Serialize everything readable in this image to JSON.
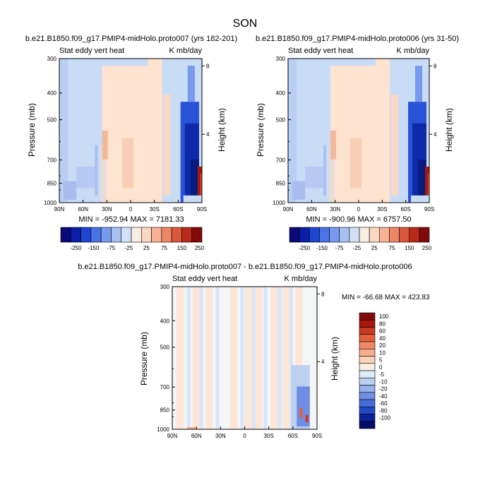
{
  "page": {
    "season": "SON"
  },
  "panels": [
    {
      "title": "b.e21.B1850.f09_g17.PMIP4-midHolo.proto007 (yrs 182-201)",
      "left_label": "Stat eddy vert heat",
      "right_label": "K mb/day",
      "ylabel": "Pressure (mb)",
      "y2label": "Height (km)",
      "stats": "MIN = -952.94   MAX = 7181.33"
    },
    {
      "title": "b.e21.B1850.f09_g17.PMIP4-midHolo.proto006 (yrs 31-50)",
      "left_label": "Stat eddy vert heat",
      "right_label": "K mb/day",
      "ylabel": "Pressure (mb)",
      "y2label": "Height (km)",
      "stats": "MIN = -900.96   MAX = 6757.50"
    },
    {
      "title": "b.e21.B1850.f09_g17.PMIP4-midHolo.proto007 - b.e21.B1850.f09_g17.PMIP4-midHolo.proto006",
      "left_label": "Stat eddy vert heat",
      "right_label": "K mb/day",
      "ylabel": "Pressure (mb)",
      "y2label": "Height (km)",
      "stats": "MIN = -66.68   MAX = 423.83"
    }
  ],
  "chart_data": [
    {
      "type": "heatmap",
      "title": "b.e21.B1850.f09_g17.PMIP4-midHolo.proto007 (yrs 182-201)",
      "xlabel": "",
      "ylabel": "Pressure (mb)",
      "y2label": "Height (km)",
      "x_ticks": [
        "90N",
        "60N",
        "30N",
        "0",
        "30S",
        "60S",
        "90S"
      ],
      "y_ticks": [
        300,
        400,
        500,
        700,
        850,
        1000
      ],
      "y2_ticks": [
        8,
        4
      ],
      "ylim": [
        1000,
        300
      ],
      "y_scale": "log",
      "min": -952.94,
      "max": 7181.33,
      "colorbar_levels": [
        -250,
        -150,
        -75,
        -25,
        25,
        75,
        150,
        250
      ]
    },
    {
      "type": "heatmap",
      "title": "b.e21.B1850.f09_g17.PMIP4-midHolo.proto006 (yrs 31-50)",
      "xlabel": "",
      "ylabel": "Pressure (mb)",
      "y2label": "Height (km)",
      "x_ticks": [
        "90N",
        "60N",
        "30N",
        "0",
        "30S",
        "60S",
        "90S"
      ],
      "y_ticks": [
        300,
        400,
        500,
        700,
        850,
        1000
      ],
      "y2_ticks": [
        8,
        4
      ],
      "ylim": [
        1000,
        300
      ],
      "y_scale": "log",
      "min": -900.96,
      "max": 6757.5,
      "colorbar_levels": [
        -250,
        -150,
        -75,
        -25,
        25,
        75,
        150,
        250
      ]
    },
    {
      "type": "heatmap",
      "title": "b.e21.B1850.f09_g17.PMIP4-midHolo.proto007 - b.e21.B1850.f09_g17.PMIP4-midHolo.proto006",
      "xlabel": "",
      "ylabel": "Pressure (mb)",
      "y2label": "Height (km)",
      "x_ticks": [
        "90N",
        "60N",
        "30N",
        "0",
        "30S",
        "60S",
        "90S"
      ],
      "y_ticks": [
        300,
        400,
        500,
        700,
        850,
        1000
      ],
      "y2_ticks": [
        8,
        4
      ],
      "ylim": [
        1000,
        300
      ],
      "y_scale": "log",
      "min": -66.68,
      "max": 423.83,
      "colorbar_levels": [
        100,
        80,
        60,
        40,
        20,
        10,
        5,
        0,
        -5,
        -10,
        -20,
        -40,
        -60,
        -80,
        -100
      ]
    }
  ],
  "colors": {
    "cbar1": [
      "#0a0a78",
      "#0b1fa6",
      "#1e46d2",
      "#4a73e6",
      "#7799ee",
      "#a9c0f2",
      "#d3e0f7",
      "#f8eee4",
      "#fbd8c1",
      "#f6b293",
      "#ee8666",
      "#d9573c",
      "#b92a1c",
      "#820a0a"
    ],
    "cbar2": [
      "#820a0a",
      "#a9150f",
      "#c93a22",
      "#e4603c",
      "#f18a64",
      "#f6ae8d",
      "#fbd3b8",
      "#f8eee4",
      "#e0ecf7",
      "#bcd0f2",
      "#96b2ec",
      "#6e8ee4",
      "#466cd8",
      "#2348c4",
      "#0c2298",
      "#050b6a"
    ],
    "blue_light": "#c9dcf6",
    "peach": "#fde3d0",
    "white": "#f4f6f8"
  }
}
